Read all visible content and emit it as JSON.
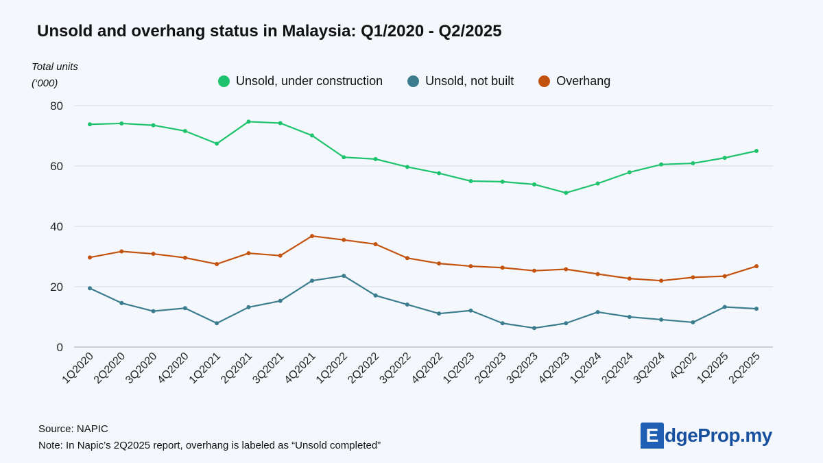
{
  "chart_data": {
    "type": "line",
    "title": "Unsold and overhang status in Malaysia: Q1/2020 - Q2/2025",
    "ylabel_line1": "Total units",
    "ylabel_line2": "(‘000)",
    "ylim": [
      0,
      80
    ],
    "yticks": [
      0,
      20,
      40,
      60,
      80
    ],
    "grid": true,
    "legend_position": "top",
    "categories": [
      "1Q2020",
      "2Q2020",
      "3Q2020",
      "4Q2020",
      "1Q2021",
      "2Q2021",
      "3Q2021",
      "4Q2021",
      "1Q2022",
      "2Q2022",
      "3Q2022",
      "4Q2022",
      "1Q2023",
      "2Q2023",
      "3Q2023",
      "4Q2023",
      "1Q2024",
      "2Q2024",
      "3Q2024",
      "4Q202",
      "1Q2025",
      "2Q2025"
    ],
    "series": [
      {
        "name": "Unsold, under construction",
        "color": "#1fc36e",
        "values": [
          73.8,
          74.1,
          73.5,
          71.6,
          67.4,
          74.7,
          74.2,
          70.1,
          62.9,
          62.3,
          59.7,
          57.6,
          55.0,
          54.8,
          53.9,
          51.1,
          54.2,
          57.9,
          60.5,
          60.9,
          62.7,
          65.0
        ]
      },
      {
        "name": "Unsold, not built",
        "color": "#3b7d8f",
        "values": [
          19.5,
          14.6,
          11.9,
          12.9,
          7.9,
          13.2,
          15.3,
          22.0,
          23.6,
          17.1,
          14.1,
          11.1,
          12.1,
          7.9,
          6.3,
          7.9,
          11.6,
          10.0,
          9.1,
          8.2,
          13.3,
          12.7
        ]
      },
      {
        "name": "Overhang",
        "color": "#c4520f",
        "values": [
          29.7,
          31.7,
          30.9,
          29.6,
          27.5,
          31.1,
          30.3,
          36.8,
          35.5,
          34.1,
          29.5,
          27.7,
          26.8,
          26.3,
          25.3,
          25.8,
          24.2,
          22.7,
          22.0,
          23.1,
          23.5,
          26.8
        ]
      }
    ]
  },
  "footer": {
    "source": "Source: NAPIC",
    "note": "Note: In Napic’s 2Q2025 report, overhang is labeled as “Unsold completed”"
  },
  "brand": {
    "logo_mark": "E",
    "logo_text": "dgeProp.my",
    "color": "#1f5fb4"
  }
}
